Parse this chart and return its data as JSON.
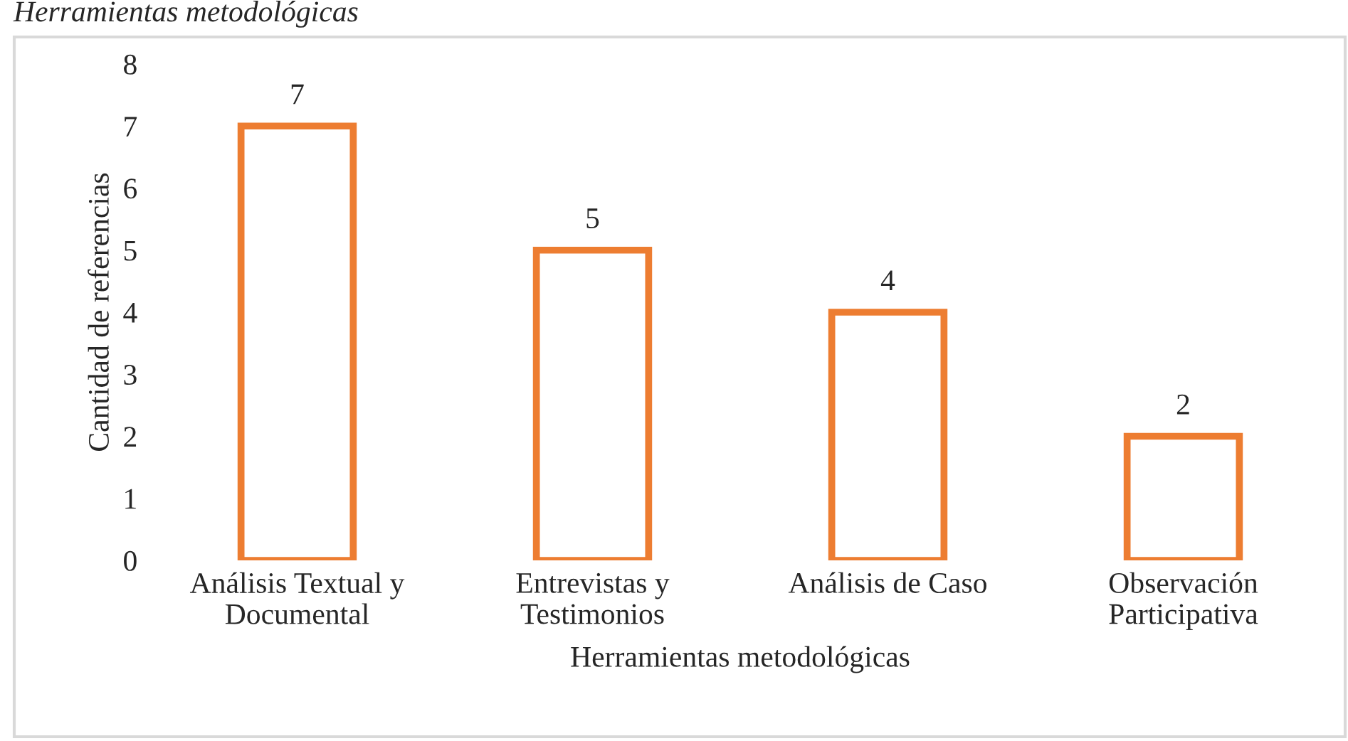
{
  "chart_data": {
    "type": "bar",
    "title": "Herramientas metodológicas",
    "categories": [
      "Análisis Textual y\nDocumental",
      "Entrevistas y\nTestimonios",
      "Análisis de Caso",
      "Observación\nParticipativa"
    ],
    "values": [
      7,
      5,
      4,
      2
    ],
    "color": "#ed7d31",
    "xlabel": "Herramientas metodológicas",
    "ylabel": "Cantidad de referencias",
    "ylim": [
      0,
      8
    ],
    "yticks": [
      0,
      1,
      2,
      3,
      4,
      5,
      6,
      7,
      8
    ],
    "grid": false,
    "data_labels": true
  }
}
